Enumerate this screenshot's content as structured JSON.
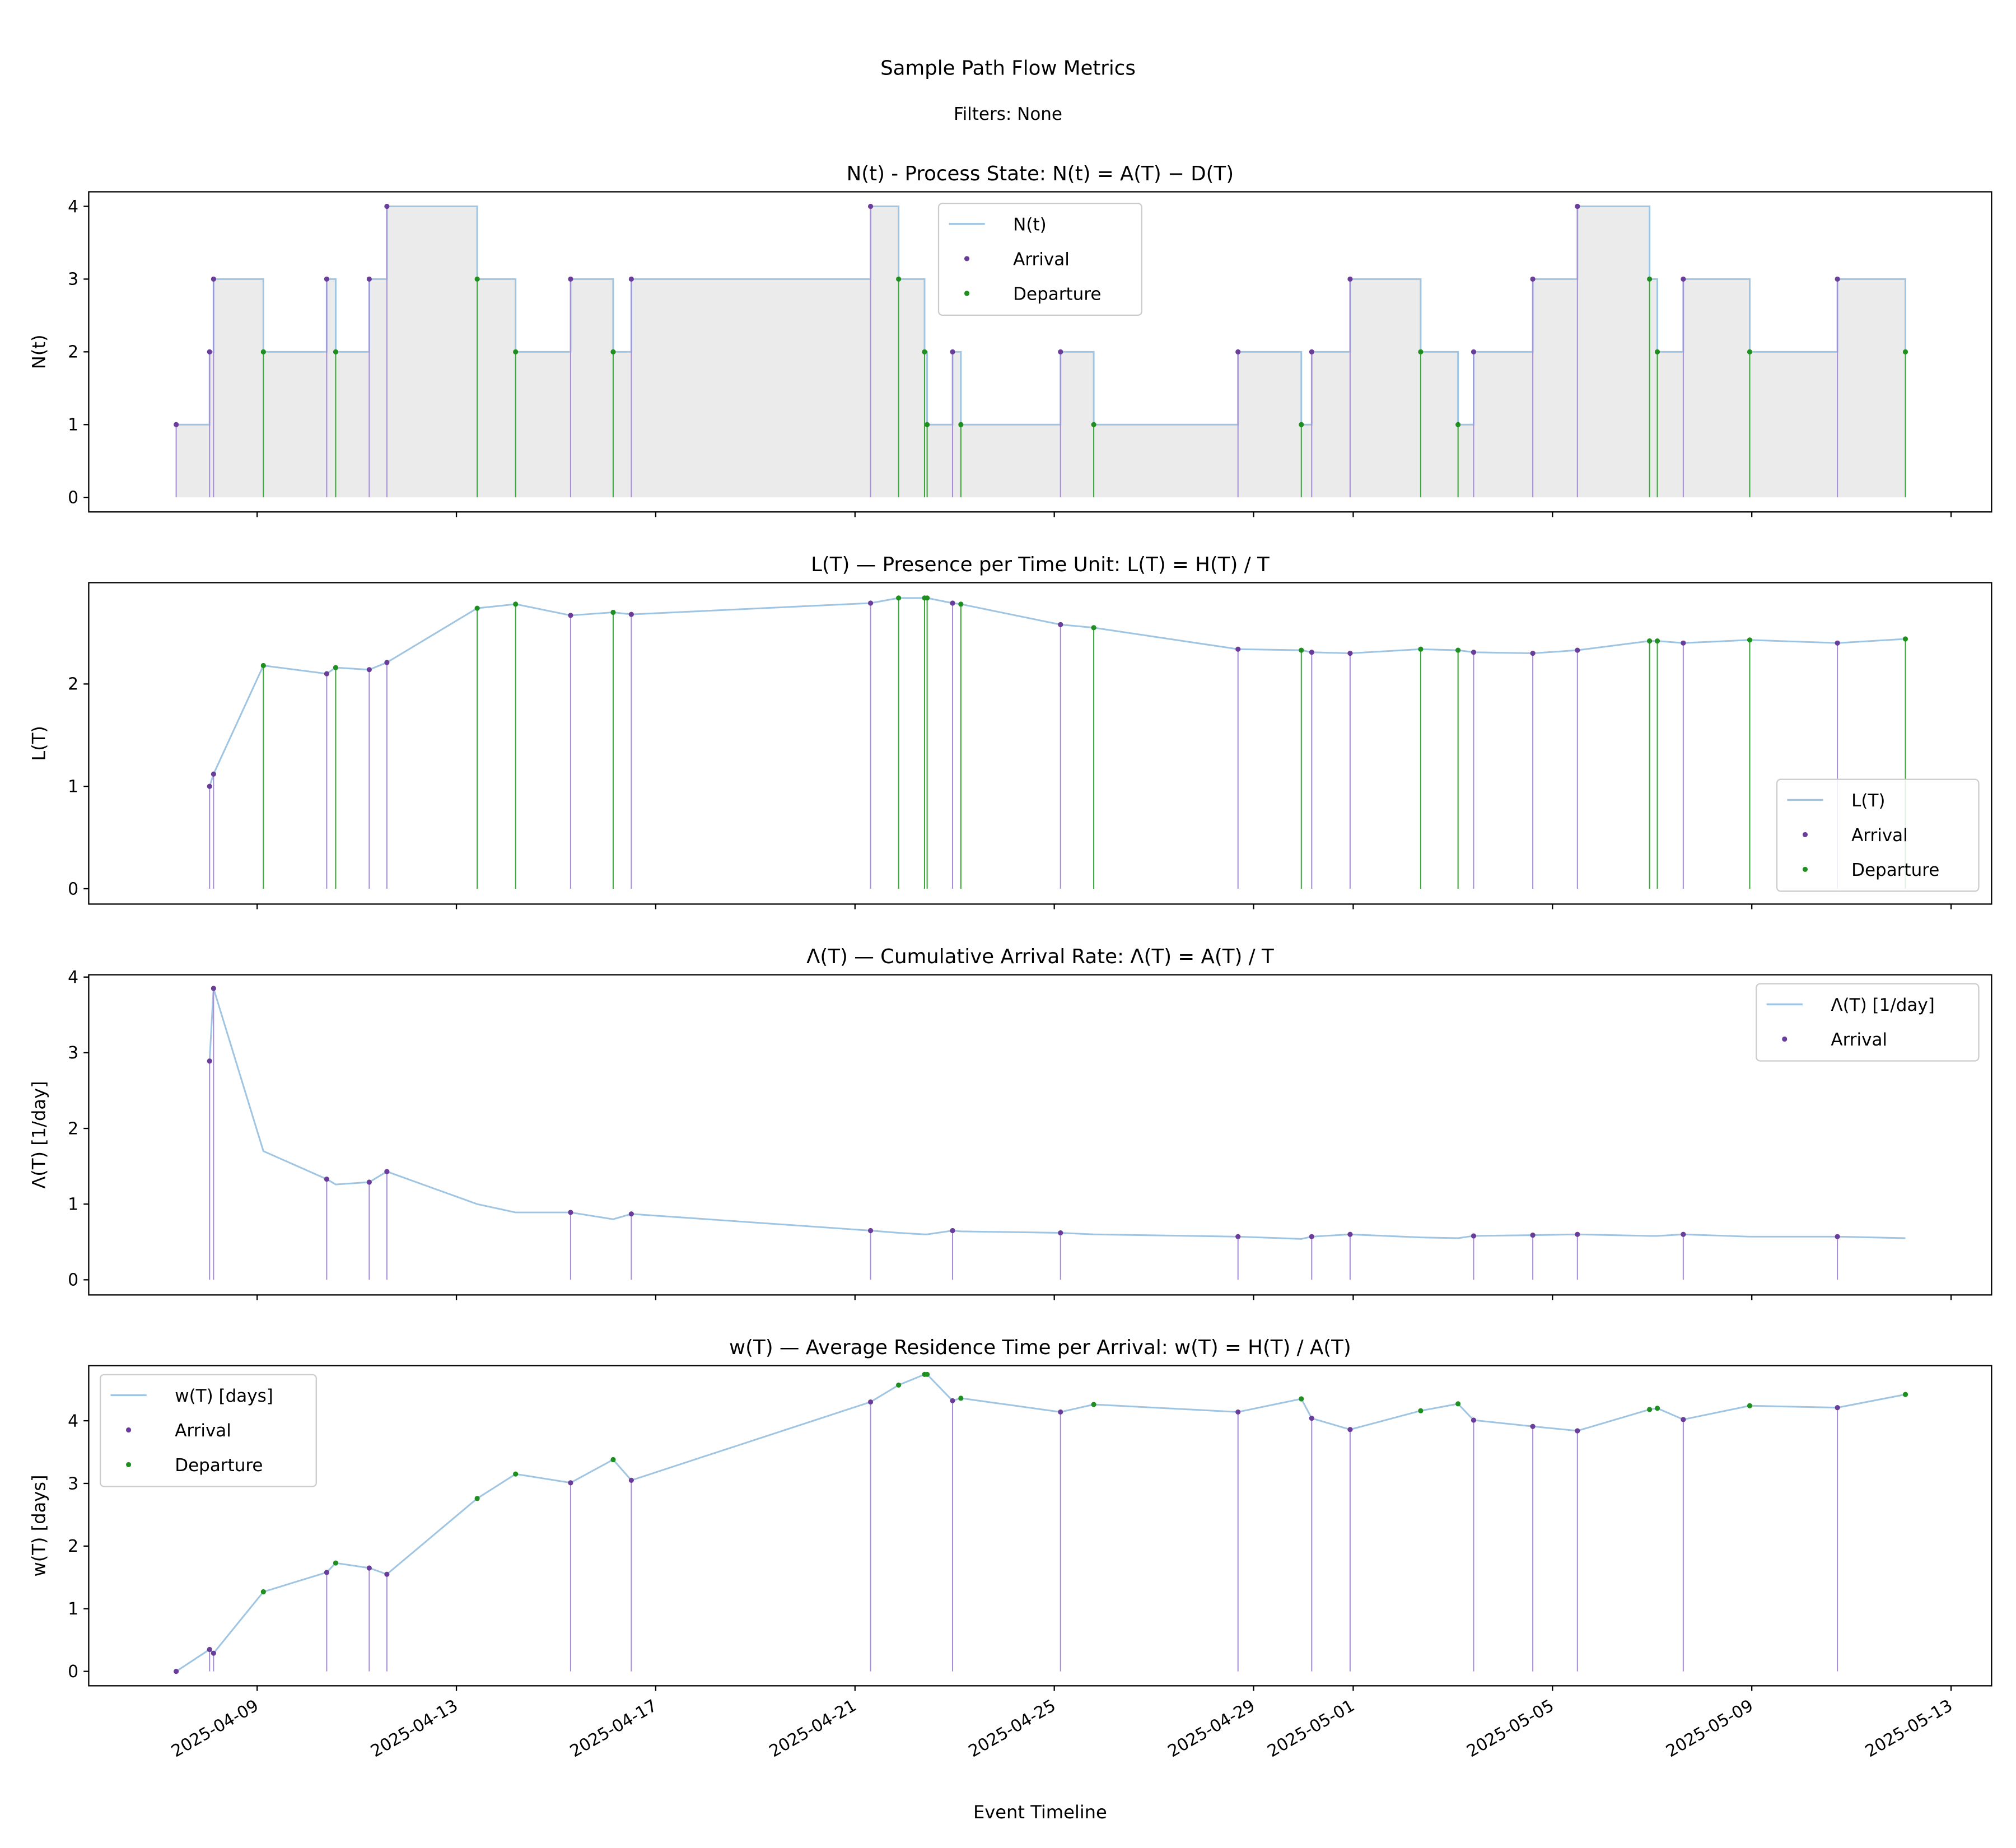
{
  "title": "Sample Path Flow Metrics",
  "subtitle": "Filters: None",
  "xlabel": "Event Timeline",
  "colors": {
    "line": "#9fc5e3",
    "arrival": "#6a3d9a",
    "departure": "#1f8f1f",
    "arrival_stem": "#a88fd8",
    "departure_stem": "#3aa83a",
    "fill": "#ebebeb"
  },
  "x_ticks": [
    "2025-04-09",
    "2025-04-13",
    "2025-04-17",
    "2025-04-21",
    "2025-04-25",
    "2025-04-29",
    "2025-05-01",
    "2025-05-05",
    "2025-05-09",
    "2025-05-13"
  ],
  "events": [
    {
      "t": "2025-04-07T09:00",
      "type": "Arrival",
      "N": 1,
      "L": null,
      "Lambda": null,
      "w": 0
    },
    {
      "t": "2025-04-08T01:05",
      "type": "Arrival",
      "N": 2,
      "L": 1.0,
      "Lambda": 2.89,
      "w": 0.35
    },
    {
      "t": "2025-04-08T03:00",
      "type": "Arrival",
      "N": 3,
      "L": 1.12,
      "Lambda": 3.85,
      "w": 0.29
    },
    {
      "t": "2025-04-09T03:00",
      "type": "Departure",
      "N": 2,
      "L": 2.18,
      "Lambda": 1.7,
      "w": 1.27
    },
    {
      "t": "2025-04-10T09:30",
      "type": "Arrival",
      "N": 3,
      "L": 2.1,
      "Lambda": 1.33,
      "w": 1.58
    },
    {
      "t": "2025-04-10T13:50",
      "type": "Departure",
      "N": 2,
      "L": 2.16,
      "Lambda": 1.26,
      "w": 1.73
    },
    {
      "t": "2025-04-11T06:00",
      "type": "Arrival",
      "N": 3,
      "L": 2.14,
      "Lambda": 1.29,
      "w": 1.65
    },
    {
      "t": "2025-04-11T14:30",
      "type": "Arrival",
      "N": 4,
      "L": 2.21,
      "Lambda": 1.43,
      "w": 1.55
    },
    {
      "t": "2025-04-13T10:00",
      "type": "Departure",
      "N": 3,
      "L": 2.74,
      "Lambda": 1.0,
      "w": 2.76
    },
    {
      "t": "2025-04-14T04:30",
      "type": "Departure",
      "N": 2,
      "L": 2.78,
      "Lambda": 0.89,
      "w": 3.15
    },
    {
      "t": "2025-04-15T07:00",
      "type": "Arrival",
      "N": 3,
      "L": 2.67,
      "Lambda": 0.89,
      "w": 3.01
    },
    {
      "t": "2025-04-16T03:30",
      "type": "Departure",
      "N": 2,
      "L": 2.7,
      "Lambda": 0.8,
      "w": 3.38
    },
    {
      "t": "2025-04-16T12:15",
      "type": "Arrival",
      "N": 3,
      "L": 2.68,
      "Lambda": 0.87,
      "w": 3.05
    },
    {
      "t": "2025-04-21T07:30",
      "type": "Arrival",
      "N": 4,
      "L": 2.79,
      "Lambda": 0.65,
      "w": 4.3
    },
    {
      "t": "2025-04-21T21:00",
      "type": "Departure",
      "N": 3,
      "L": 2.84,
      "Lambda": 0.62,
      "w": 4.57
    },
    {
      "t": "2025-04-22T09:30",
      "type": "Departure",
      "N": 2,
      "L": 2.84,
      "Lambda": 0.6,
      "w": 4.74
    },
    {
      "t": "2025-04-22T10:45",
      "type": "Departure",
      "N": 1,
      "L": 2.84,
      "Lambda": 0.6,
      "w": 4.74
    },
    {
      "t": "2025-04-22T23:00",
      "type": "Arrival",
      "N": 2,
      "L": 2.79,
      "Lambda": 0.65,
      "w": 4.32
    },
    {
      "t": "2025-04-23T03:00",
      "type": "Departure",
      "N": 1,
      "L": 2.78,
      "Lambda": 0.64,
      "w": 4.36
    },
    {
      "t": "2025-04-25T03:00",
      "type": "Arrival",
      "N": 2,
      "L": 2.58,
      "Lambda": 0.62,
      "w": 4.14
    },
    {
      "t": "2025-04-25T19:00",
      "type": "Departure",
      "N": 1,
      "L": 2.55,
      "Lambda": 0.6,
      "w": 4.26
    },
    {
      "t": "2025-04-28T16:30",
      "type": "Arrival",
      "N": 2,
      "L": 2.34,
      "Lambda": 0.57,
      "w": 4.14
    },
    {
      "t": "2025-04-29T23:00",
      "type": "Departure",
      "N": 1,
      "L": 2.33,
      "Lambda": 0.54,
      "w": 4.35
    },
    {
      "t": "2025-04-30T04:00",
      "type": "Arrival",
      "N": 2,
      "L": 2.31,
      "Lambda": 0.57,
      "w": 4.04
    },
    {
      "t": "2025-04-30T22:30",
      "type": "Arrival",
      "N": 3,
      "L": 2.3,
      "Lambda": 0.6,
      "w": 3.86
    },
    {
      "t": "2025-05-02T08:30",
      "type": "Departure",
      "N": 2,
      "L": 2.34,
      "Lambda": 0.56,
      "w": 4.16
    },
    {
      "t": "2025-05-03T02:30",
      "type": "Departure",
      "N": 1,
      "L": 2.33,
      "Lambda": 0.55,
      "w": 4.27
    },
    {
      "t": "2025-05-03T10:00",
      "type": "Arrival",
      "N": 2,
      "L": 2.31,
      "Lambda": 0.58,
      "w": 4.01
    },
    {
      "t": "2025-05-04T14:30",
      "type": "Arrival",
      "N": 3,
      "L": 2.3,
      "Lambda": 0.59,
      "w": 3.91
    },
    {
      "t": "2025-05-05T12:00",
      "type": "Arrival",
      "N": 4,
      "L": 2.33,
      "Lambda": 0.6,
      "w": 3.84
    },
    {
      "t": "2025-05-06T22:45",
      "type": "Departure",
      "N": 3,
      "L": 2.42,
      "Lambda": 0.58,
      "w": 4.18
    },
    {
      "t": "2025-05-07T02:30",
      "type": "Departure",
      "N": 2,
      "L": 2.42,
      "Lambda": 0.58,
      "w": 4.2
    },
    {
      "t": "2025-05-07T15:00",
      "type": "Arrival",
      "N": 3,
      "L": 2.4,
      "Lambda": 0.6,
      "w": 4.02
    },
    {
      "t": "2025-05-08T23:00",
      "type": "Departure",
      "N": 2,
      "L": 2.43,
      "Lambda": 0.57,
      "w": 4.24
    },
    {
      "t": "2025-05-10T17:15",
      "type": "Arrival",
      "N": 3,
      "L": 2.4,
      "Lambda": 0.57,
      "w": 4.21
    },
    {
      "t": "2025-05-12T02:00",
      "type": "Departure",
      "N": 2,
      "L": 2.44,
      "Lambda": 0.55,
      "w": 4.42
    }
  ],
  "chart_data": [
    {
      "type": "line",
      "key": "N",
      "title": "N(t) - Process State: N(t) = A(T) − D(T)",
      "ylabel": "N(t)",
      "ylim": [
        -0.2,
        4.2
      ],
      "yticks": [
        "0",
        "1",
        "2",
        "3",
        "4"
      ],
      "legend": [
        "N(t)",
        "Arrival",
        "Departure"
      ],
      "legend_position": "top-center",
      "step": true
    },
    {
      "type": "line",
      "key": "L",
      "title": "L(T) — Presence per Time Unit: L(T) = H(T) / T",
      "ylabel": "L(T)",
      "ylim": [
        -0.15,
        2.99
      ],
      "yticks": [
        "0",
        "1",
        "2"
      ],
      "legend": [
        "L(T)",
        "Arrival",
        "Departure"
      ],
      "legend_position": "lower-right"
    },
    {
      "type": "line",
      "key": "Lambda",
      "title": "Λ(T) — Cumulative Arrival Rate: Λ(T) = A(T) / T",
      "ylabel": "Λ(T) [1/day]",
      "ylim": [
        -0.2,
        4.03
      ],
      "yticks": [
        "0",
        "1",
        "2",
        "3",
        "4"
      ],
      "legend": [
        "Λ(T) [1/day]",
        "Arrival"
      ],
      "legend_position": "upper-right"
    },
    {
      "type": "line",
      "key": "w",
      "title": "w(T) — Average Residence Time per Arrival: w(T) = H(T) / A(T)",
      "ylabel": "w(T) [days]",
      "ylim": [
        -0.23,
        4.88
      ],
      "yticks": [
        "0",
        "1",
        "2",
        "3",
        "4"
      ],
      "legend": [
        "w(T) [days]",
        "Arrival",
        "Departure"
      ],
      "legend_position": "upper-left"
    }
  ]
}
